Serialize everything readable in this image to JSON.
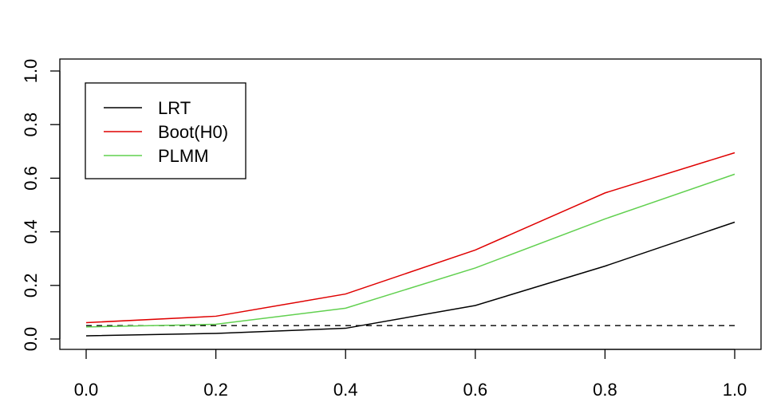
{
  "chart_data": {
    "type": "line",
    "title": "",
    "xlabel": "",
    "ylabel": "",
    "xlim": [
      0.0,
      1.0
    ],
    "ylim": [
      0.0,
      1.0
    ],
    "x_ticks": [
      "0.0",
      "0.2",
      "0.4",
      "0.6",
      "0.8",
      "1.0"
    ],
    "y_ticks": [
      "0.0",
      "0.2",
      "0.4",
      "0.6",
      "0.8",
      "1.0"
    ],
    "grid": false,
    "legend_position": "top-left",
    "x": [
      0.0,
      0.2,
      0.4,
      0.6,
      0.8,
      1.0
    ],
    "series": [
      {
        "name": "LRT",
        "color": "#000000",
        "values": [
          0.012,
          0.021,
          0.04,
          0.125,
          0.272,
          0.436
        ]
      },
      {
        "name": "Boot(H0)",
        "color": "#DF0000",
        "values": [
          0.061,
          0.085,
          0.168,
          0.332,
          0.545,
          0.695
        ]
      },
      {
        "name": "PLMM",
        "color": "#61D04F",
        "values": [
          0.045,
          0.055,
          0.115,
          0.265,
          0.448,
          0.615
        ]
      }
    ],
    "reference_line": {
      "y": 0.05,
      "style": "dashed",
      "color": "#000000"
    }
  }
}
